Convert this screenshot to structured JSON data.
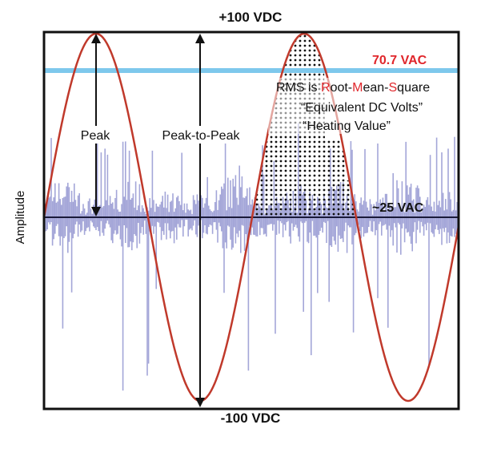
{
  "labels": {
    "top_rail": "+100 VDC",
    "bottom_rail": "-100 VDC",
    "y_axis": "Amplitude",
    "rms_level": "70.7 VAC",
    "signal_level": "~25 VAC",
    "peak": "Peak",
    "peak_to_peak": "Peak-to-Peak"
  },
  "rms_note": {
    "prefix": "RMS is ",
    "r": "R",
    "oot": "oot-",
    "m": "M",
    "ean": "ean-",
    "s": "S",
    "quare": "quare",
    "line2": "“Equivalent DC Volts”",
    "line3": "“Heating Value”"
  },
  "colors": {
    "sine": "#c0392b",
    "rms_line": "#7ec8ec",
    "audio": "#a4a6d8",
    "frame": "#111111",
    "red_text": "#e0262b",
    "stipple": "#111111"
  }
}
